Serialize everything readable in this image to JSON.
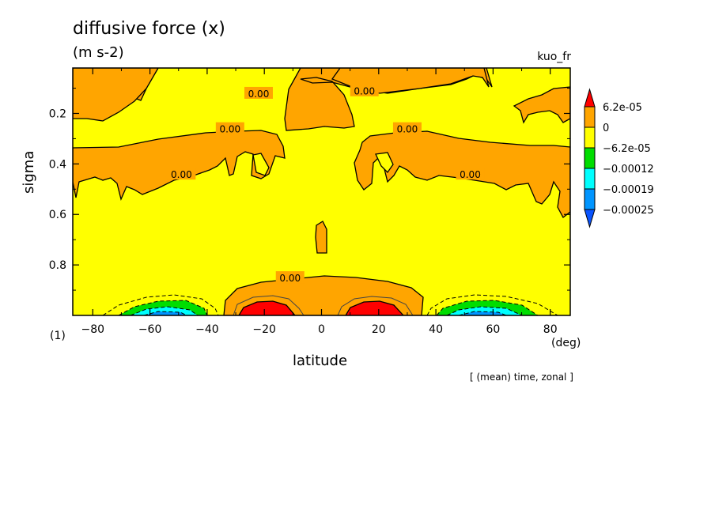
{
  "header": {
    "title": "diffusive force (x)",
    "units": "(m s-2)",
    "variable": "kuo_fr",
    "plot_index": "(1)",
    "note": "[ (mean) time, zonal ]"
  },
  "chart_data": {
    "type": "contour",
    "xlabel": "latitude",
    "xunit": "(deg)",
    "ylabel": "sigma",
    "xlim": [
      -87,
      87
    ],
    "ylim": [
      1.0,
      0.02
    ],
    "y_inverted": true,
    "x_ticks": [
      -80,
      -60,
      -40,
      -20,
      0,
      20,
      40,
      60,
      80
    ],
    "x_tick_labels": [
      "−80",
      "−60",
      "−40",
      "−20",
      "0",
      "20",
      "40",
      "60",
      "80"
    ],
    "y_ticks": [
      0.2,
      0.4,
      0.6,
      0.8
    ],
    "y_tick_labels": [
      "0.2",
      "0.4",
      "0.6",
      "0.8"
    ],
    "contour_labels": [
      {
        "text": "0.00",
        "x": -22,
        "y": 0.12
      },
      {
        "text": "0.00",
        "x": 15,
        "y": 0.11
      },
      {
        "text": "0.00",
        "x": -32,
        "y": 0.26
      },
      {
        "text": "0.00",
        "x": 30,
        "y": 0.26
      },
      {
        "text": "0.00",
        "x": -49,
        "y": 0.44
      },
      {
        "text": "0.00",
        "x": 52,
        "y": 0.44
      },
      {
        "text": "0.00",
        "x": -11,
        "y": 0.85
      }
    ],
    "colorbar": {
      "levels": [
        "6.2e-05",
        "0",
        "−6.2e-05",
        "−0.00012",
        "−0.00019",
        "−0.00025"
      ],
      "colors": [
        "#ff0000",
        "#ffa500",
        "#ffff00",
        "#00dd00",
        "#00ffff",
        "#0095ff",
        "#0a54ff"
      ]
    },
    "background_color": "#ffff00"
  }
}
